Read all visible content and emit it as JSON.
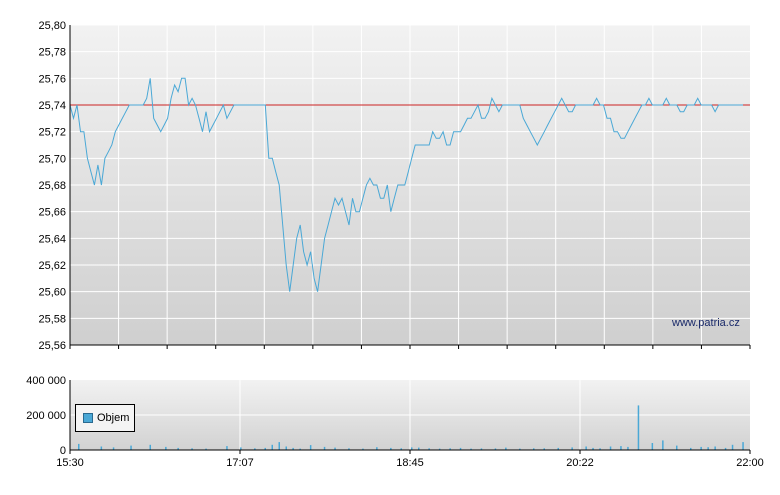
{
  "chart_data": [
    {
      "type": "line",
      "y_ticks": [
        "25,80",
        "25,78",
        "25,76",
        "25,74",
        "25,72",
        "25,70",
        "25,68",
        "25,66",
        "25,64",
        "25,62",
        "25,60",
        "25,58",
        "25,56"
      ],
      "ylim": [
        25.56,
        25.8
      ],
      "xlim_min": [
        0,
        390
      ],
      "reference_value": 25.74,
      "grid": true,
      "colors": {
        "line": "#4aa8d6",
        "reference": "#cc2222"
      },
      "watermark": "www.patria.cz",
      "series": [
        {
          "x_min": [
            0,
            2,
            4,
            6,
            8,
            10,
            12,
            14,
            16,
            18,
            20,
            22,
            24,
            26,
            28,
            30,
            32,
            34,
            36,
            38,
            40,
            42,
            44,
            46,
            48,
            50,
            52,
            54,
            56,
            58,
            60,
            62,
            64,
            66,
            68,
            70,
            72,
            74,
            76,
            78,
            80,
            82,
            84,
            86,
            88,
            90,
            92,
            94,
            96,
            98,
            100,
            102,
            104,
            106,
            108,
            110,
            112,
            114,
            116,
            118,
            120,
            122,
            124,
            126,
            128,
            130,
            132,
            134,
            136,
            138,
            140,
            142,
            144,
            146,
            148,
            150,
            152,
            154,
            156,
            158,
            160,
            162,
            164,
            166,
            168,
            170,
            172,
            174,
            176,
            178,
            180,
            182,
            184,
            186,
            188,
            190,
            192,
            194,
            196,
            198,
            200,
            202,
            204,
            206,
            208,
            210,
            212,
            214,
            216,
            218,
            220,
            222,
            224,
            226,
            228,
            230,
            232,
            234,
            236,
            238,
            240,
            242,
            244,
            246,
            248,
            250,
            252,
            254,
            256,
            258,
            260,
            262,
            264,
            266,
            268,
            270,
            272,
            274,
            276,
            278,
            280,
            282,
            284,
            286,
            288,
            290,
            292,
            294,
            296,
            298,
            300,
            302,
            304,
            306,
            308,
            310,
            312,
            314,
            316,
            318,
            320,
            322,
            324,
            326,
            328,
            330,
            332,
            334,
            336,
            338,
            340,
            342,
            344,
            346,
            348,
            350,
            352,
            354,
            356,
            358,
            360,
            362,
            364,
            366,
            368,
            370,
            372,
            374,
            376,
            378,
            380,
            382,
            384,
            386,
            388,
            390
          ],
          "values": [
            25.74,
            25.73,
            25.74,
            25.72,
            25.72,
            25.7,
            25.69,
            25.68,
            25.695,
            25.68,
            25.7,
            25.705,
            25.71,
            25.72,
            25.725,
            25.73,
            25.735,
            25.74,
            25.74,
            25.74,
            25.74,
            25.74,
            25.745,
            25.76,
            25.73,
            25.725,
            25.72,
            25.725,
            25.73,
            25.745,
            25.755,
            25.75,
            25.76,
            25.76,
            25.74,
            25.745,
            25.74,
            25.73,
            25.72,
            25.735,
            25.72,
            25.725,
            25.73,
            25.735,
            25.74,
            25.73,
            25.735,
            25.74,
            25.74,
            25.74,
            25.74,
            25.74,
            25.74,
            25.74,
            25.74,
            25.74,
            25.74,
            25.7,
            25.7,
            25.69,
            25.68,
            25.65,
            25.62,
            25.6,
            25.62,
            25.64,
            25.65,
            25.63,
            25.62,
            25.63,
            25.61,
            25.6,
            25.62,
            25.64,
            25.65,
            25.66,
            25.67,
            25.665,
            25.67,
            25.66,
            25.65,
            25.67,
            25.66,
            25.66,
            25.67,
            25.68,
            25.685,
            25.68,
            25.68,
            25.67,
            25.67,
            25.68,
            25.66,
            25.67,
            25.68,
            25.68,
            25.68,
            25.69,
            25.7,
            25.71,
            25.71,
            25.71,
            25.71,
            25.71,
            25.72,
            25.715,
            25.715,
            25.72,
            25.71,
            25.71,
            25.72,
            25.72,
            25.72,
            25.725,
            25.73,
            25.73,
            25.735,
            25.74,
            25.73,
            25.73,
            25.735,
            25.745,
            25.74,
            25.735,
            25.74,
            25.74,
            25.74,
            25.74,
            25.74,
            25.74,
            25.73,
            25.725,
            25.72,
            25.715,
            25.71,
            25.715,
            25.72,
            25.725,
            25.73,
            25.735,
            25.74,
            25.745,
            25.74,
            25.735,
            25.735,
            25.74,
            25.74,
            25.74,
            25.74,
            25.74,
            25.74,
            25.745,
            25.74,
            25.74,
            25.73,
            25.73,
            25.72,
            25.72,
            25.715,
            25.715,
            25.72,
            25.725,
            25.73,
            25.735,
            25.74,
            25.74,
            25.745,
            25.74,
            25.74,
            25.74,
            25.74,
            25.745,
            25.74,
            25.74,
            25.74,
            25.735,
            25.735,
            25.74,
            25.74,
            25.74,
            25.745,
            25.74,
            25.74,
            25.74,
            25.74,
            25.735,
            25.74,
            25.74,
            25.74,
            25.74,
            25.74,
            25.74,
            25.74,
            25.74
          ]
        }
      ]
    },
    {
      "type": "bar",
      "y_ticks": [
        "400 000",
        "200 000",
        "0"
      ],
      "ylim": [
        0,
        400000
      ],
      "x_ticks": [
        "15:30",
        "17:07",
        "18:45",
        "20:22",
        "22:00"
      ],
      "legend": "Objem",
      "colors": {
        "bar": "#4aa8d6"
      },
      "bars_min": [
        5,
        18,
        25,
        35,
        46,
        55,
        62,
        70,
        78,
        90,
        98,
        106,
        112,
        116,
        120,
        124,
        128,
        132,
        138,
        146,
        152,
        160,
        168,
        176,
        184,
        190,
        196,
        200,
        206,
        212,
        218,
        224,
        230,
        236,
        244,
        250,
        258,
        266,
        272,
        280,
        288,
        296,
        300,
        304,
        310,
        316,
        320,
        326,
        334,
        340,
        348,
        356,
        362,
        366,
        370,
        376,
        380,
        386
      ],
      "bars_vol": [
        35000,
        20000,
        15000,
        25000,
        30000,
        18000,
        12000,
        10000,
        8000,
        22000,
        15000,
        10000,
        12000,
        30000,
        45000,
        20000,
        12000,
        8000,
        28000,
        18000,
        14000,
        10000,
        8000,
        16000,
        12000,
        10000,
        15000,
        14000,
        10000,
        8000,
        10000,
        12000,
        8000,
        9000,
        9000,
        14000,
        8000,
        10000,
        10000,
        12000,
        15000,
        20000,
        12000,
        10000,
        20000,
        22000,
        18000,
        255000,
        40000,
        55000,
        25000,
        12000,
        18000,
        16000,
        20000,
        12000,
        30000,
        45000
      ]
    }
  ]
}
